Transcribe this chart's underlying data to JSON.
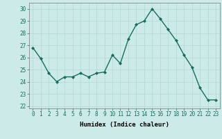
{
  "x": [
    0,
    1,
    2,
    3,
    4,
    5,
    6,
    7,
    8,
    9,
    10,
    11,
    12,
    13,
    14,
    15,
    16,
    17,
    18,
    19,
    20,
    21,
    22,
    23
  ],
  "y": [
    26.8,
    25.9,
    24.7,
    24.0,
    24.4,
    24.4,
    24.7,
    24.4,
    24.7,
    24.8,
    26.2,
    25.5,
    27.5,
    28.7,
    29.0,
    30.0,
    29.2,
    28.3,
    27.4,
    26.2,
    25.2,
    23.5,
    22.5,
    22.5
  ],
  "line_color": "#1a6b5e",
  "marker": "D",
  "marker_size": 2,
  "bg_color": "#cceae7",
  "grid_color": "#b0d8d4",
  "xlabel": "Humidex (Indice chaleur)",
  "ylim": [
    21.8,
    30.5
  ],
  "xlim": [
    -0.5,
    23.5
  ],
  "yticks": [
    22,
    23,
    24,
    25,
    26,
    27,
    28,
    29,
    30
  ],
  "xticks": [
    0,
    1,
    2,
    3,
    4,
    5,
    6,
    7,
    8,
    9,
    10,
    11,
    12,
    13,
    14,
    15,
    16,
    17,
    18,
    19,
    20,
    21,
    22,
    23
  ],
  "font_size_label": 6.5,
  "font_size_tick": 5.5,
  "line_width": 1.0
}
